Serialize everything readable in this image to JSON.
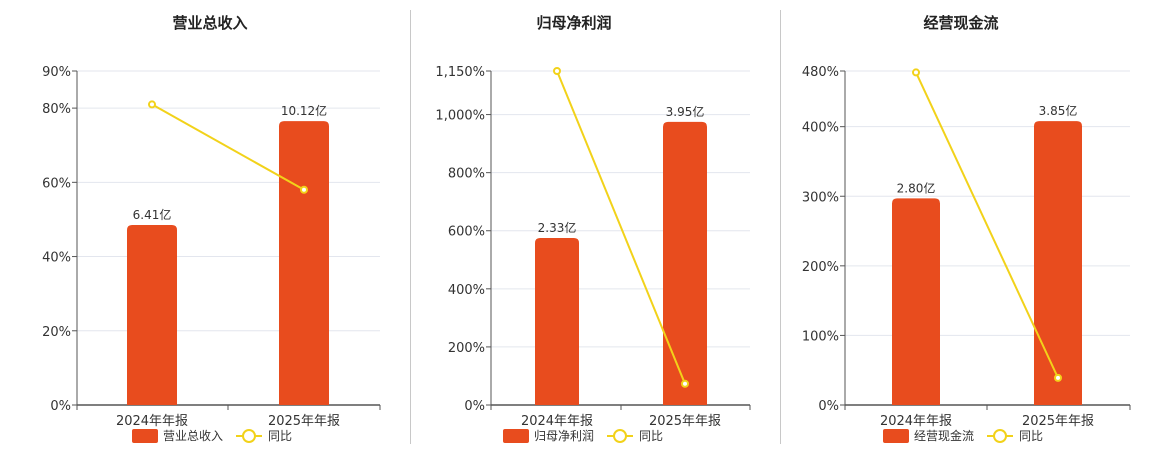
{
  "chart_data": [
    {
      "type": "bar",
      "title": "营业总收入",
      "categories": [
        "2024年年报",
        "2025年年报"
      ],
      "series": [
        {
          "name": "营业总收入",
          "type": "bar",
          "values": [
            48.5,
            76.5
          ],
          "labels": [
            "6.41亿",
            "10.12亿"
          ]
        },
        {
          "name": "同比",
          "type": "line",
          "values": [
            81,
            58
          ]
        }
      ],
      "ylim": [
        0,
        90
      ],
      "yticks": [
        "0%",
        "20%",
        "40%",
        "60%",
        "80%",
        "90%"
      ],
      "ytick_values": [
        0,
        20,
        40,
        60,
        80,
        90
      ],
      "grid": true,
      "legend": "bottom",
      "colors": {
        "bar": "#E84C1E",
        "line": "#F2D21A"
      }
    },
    {
      "type": "bar",
      "title": "归母净利润",
      "categories": [
        "2024年年报",
        "2025年年报"
      ],
      "series": [
        {
          "name": "归母净利润",
          "type": "bar",
          "values": [
            575,
            975
          ],
          "labels": [
            "2.33亿",
            "3.95亿"
          ]
        },
        {
          "name": "同比",
          "type": "line",
          "values": [
            1150,
            73
          ]
        }
      ],
      "ylim": [
        0,
        1150
      ],
      "yticks": [
        "0%",
        "200%",
        "400%",
        "600%",
        "800%",
        "1,000%",
        "1,150%"
      ],
      "ytick_values": [
        0,
        200,
        400,
        600,
        800,
        1000,
        1150
      ],
      "grid": true,
      "legend": "bottom",
      "colors": {
        "bar": "#E84C1E",
        "line": "#F2D21A"
      }
    },
    {
      "type": "bar",
      "title": "经营现金流",
      "categories": [
        "2024年年报",
        "2025年年报"
      ],
      "series": [
        {
          "name": "经营现金流",
          "type": "bar",
          "values": [
            297,
            408
          ],
          "labels": [
            "2.80亿",
            "3.85亿"
          ]
        },
        {
          "name": "同比",
          "type": "line",
          "values": [
            478,
            39
          ]
        }
      ],
      "ylim": [
        0,
        480
      ],
      "yticks": [
        "0%",
        "100%",
        "200%",
        "300%",
        "400%",
        "480%"
      ],
      "ytick_values": [
        0,
        100,
        200,
        300,
        400,
        480
      ],
      "grid": true,
      "legend": "bottom",
      "colors": {
        "bar": "#E84C1E",
        "line": "#F2D21A"
      }
    }
  ]
}
